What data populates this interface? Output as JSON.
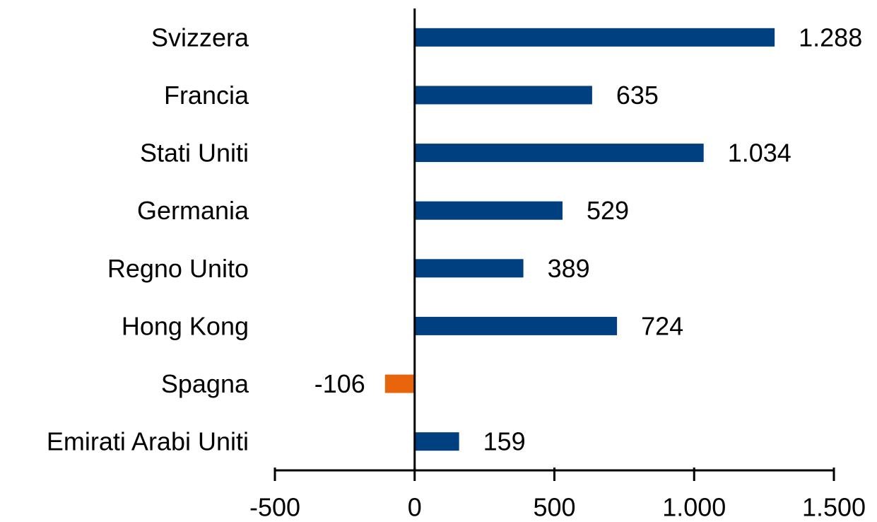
{
  "chart_data": {
    "type": "barh",
    "categories": [
      "Svizzera",
      "Francia",
      "Stati Uniti",
      "Germania",
      "Regno Unito",
      "Hong Kong",
      "Spagna",
      "Emirati Arabi Uniti"
    ],
    "values": [
      1288,
      635,
      1034,
      529,
      389,
      724,
      -106,
      159
    ],
    "value_labels": [
      "1.288",
      "635",
      "1.034",
      "529",
      "389",
      "724",
      "-106",
      "159"
    ],
    "color": "#003f80",
    "negative_color": "#e8650b",
    "xlim": [
      -500,
      1500
    ],
    "xticks": [
      -500,
      0,
      500,
      {
        "value": 1000,
        "label": "1.000"
      },
      {
        "value": 1500,
        "label": "1.500"
      }
    ],
    "grid": false
  }
}
